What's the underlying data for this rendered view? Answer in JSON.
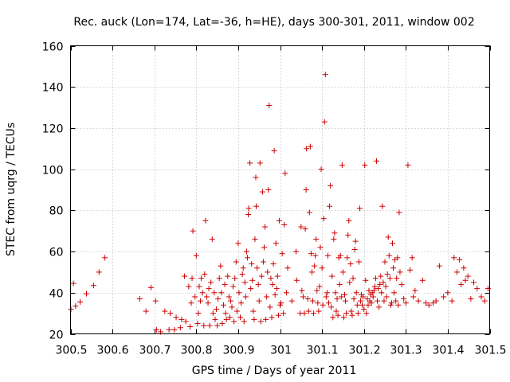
{
  "chart_data": {
    "type": "scatter",
    "title": "Rec. auck (Lon=174, Lat=-36, h=HE), days 300-301, 2011, window 002",
    "xlabel": "GPS time / Days of year 2011",
    "ylabel": "STEC from uqrg / TECUs",
    "xlim": [
      300.5,
      301.5
    ],
    "ylim": [
      20,
      160
    ],
    "xticks": [
      "300.5",
      "300.6",
      "300.7",
      "300.8",
      "300.9",
      "301",
      "301.1",
      "301.2",
      "301.3",
      "301.4",
      "301.5"
    ],
    "yticks": [
      "20",
      "40",
      "60",
      "80",
      "100",
      "120",
      "140",
      "160"
    ],
    "grid": true,
    "marker": "+",
    "color": "#cc0000",
    "series": [
      {
        "name": "STEC",
        "points": [
          [
            300.501,
            32
          ],
          [
            300.507,
            44.5
          ],
          [
            300.512,
            33.5
          ],
          [
            300.523,
            35.5
          ],
          [
            300.538,
            39.5
          ],
          [
            300.555,
            43.5
          ],
          [
            300.568,
            50
          ],
          [
            300.582,
            57
          ],
          [
            300.665,
            37
          ],
          [
            300.68,
            31
          ],
          [
            300.692,
            42.5
          ],
          [
            300.703,
            36
          ],
          [
            300.705,
            22
          ],
          [
            300.715,
            21
          ],
          [
            300.725,
            31
          ],
          [
            300.735,
            22
          ],
          [
            300.738,
            30
          ],
          [
            300.748,
            22
          ],
          [
            300.752,
            28
          ],
          [
            300.762,
            23
          ],
          [
            300.765,
            27
          ],
          [
            300.772,
            48
          ],
          [
            300.775,
            26
          ],
          [
            300.782,
            43
          ],
          [
            300.785,
            23.5
          ],
          [
            300.788,
            35
          ],
          [
            300.79,
            47
          ],
          [
            300.792,
            70
          ],
          [
            300.797,
            38
          ],
          [
            300.8,
            58
          ],
          [
            300.803,
            25
          ],
          [
            300.805,
            30
          ],
          [
            300.807,
            43
          ],
          [
            300.81,
            36
          ],
          [
            300.812,
            47
          ],
          [
            300.815,
            40
          ],
          [
            300.818,
            24
          ],
          [
            300.82,
            49
          ],
          [
            300.822,
            75
          ],
          [
            300.825,
            38
          ],
          [
            300.828,
            35
          ],
          [
            300.83,
            42
          ],
          [
            300.832,
            24
          ],
          [
            300.835,
            45
          ],
          [
            300.838,
            66
          ],
          [
            300.84,
            30
          ],
          [
            300.843,
            40
          ],
          [
            300.845,
            27
          ],
          [
            300.848,
            32
          ],
          [
            300.85,
            24
          ],
          [
            300.852,
            37
          ],
          [
            300.855,
            47
          ],
          [
            300.858,
            53
          ],
          [
            300.86,
            40
          ],
          [
            300.862,
            25
          ],
          [
            300.865,
            34
          ],
          [
            300.868,
            44
          ],
          [
            300.87,
            30
          ],
          [
            300.872,
            27
          ],
          [
            300.875,
            48
          ],
          [
            300.878,
            38
          ],
          [
            300.88,
            28
          ],
          [
            300.882,
            36
          ],
          [
            300.885,
            33
          ],
          [
            300.888,
            43
          ],
          [
            300.89,
            26
          ],
          [
            300.892,
            47
          ],
          [
            300.895,
            55
          ],
          [
            300.897,
            31
          ],
          [
            300.9,
            64
          ],
          [
            300.902,
            40
          ],
          [
            300.905,
            28
          ],
          [
            300.907,
            35
          ],
          [
            300.91,
            49
          ],
          [
            300.912,
            52
          ],
          [
            300.914,
            26
          ],
          [
            300.916,
            45
          ],
          [
            300.918,
            38
          ],
          [
            300.92,
            60
          ],
          [
            300.922,
            57
          ],
          [
            300.924,
            78
          ],
          [
            300.925,
            81
          ],
          [
            300.928,
            103
          ],
          [
            300.93,
            42
          ],
          [
            300.932,
            54
          ],
          [
            300.934,
            46
          ],
          [
            300.936,
            31
          ],
          [
            300.938,
            27
          ],
          [
            300.94,
            66
          ],
          [
            300.942,
            96
          ],
          [
            300.943,
            82
          ],
          [
            300.945,
            52
          ],
          [
            300.948,
            44
          ],
          [
            300.95,
            36
          ],
          [
            300.952,
            103
          ],
          [
            300.954,
            26
          ],
          [
            300.956,
            48
          ],
          [
            300.958,
            89
          ],
          [
            300.96,
            55
          ],
          [
            300.962,
            62
          ],
          [
            300.964,
            72
          ],
          [
            300.966,
            27
          ],
          [
            300.968,
            38
          ],
          [
            300.97,
            50
          ],
          [
            300.972,
            90
          ],
          [
            300.974,
            131
          ],
          [
            300.976,
            33
          ],
          [
            300.978,
            47
          ],
          [
            300.98,
            28
          ],
          [
            300.982,
            44
          ],
          [
            300.984,
            54
          ],
          [
            300.986,
            109
          ],
          [
            300.988,
            39
          ],
          [
            300.99,
            64
          ],
          [
            300.992,
            42
          ],
          [
            300.994,
            48
          ],
          [
            300.996,
            29
          ],
          [
            300.998,
            75
          ],
          [
            301.0,
            34
          ],
          [
            301.002,
            35
          ],
          [
            301.005,
            59
          ],
          [
            301.008,
            30
          ],
          [
            301.01,
            73
          ],
          [
            301.012,
            98
          ],
          [
            301.015,
            40
          ],
          [
            301.018,
            52
          ],
          [
            301.028,
            36
          ],
          [
            301.038,
            60
          ],
          [
            301.04,
            46
          ],
          [
            301.048,
            30
          ],
          [
            301.05,
            72
          ],
          [
            301.052,
            41
          ],
          [
            301.055,
            38
          ],
          [
            301.058,
            30
          ],
          [
            301.06,
            71
          ],
          [
            301.062,
            90
          ],
          [
            301.063,
            110
          ],
          [
            301.066,
            37
          ],
          [
            301.068,
            31
          ],
          [
            301.07,
            79
          ],
          [
            301.072,
            111
          ],
          [
            301.074,
            59
          ],
          [
            301.076,
            50
          ],
          [
            301.078,
            36
          ],
          [
            301.08,
            30
          ],
          [
            301.082,
            53
          ],
          [
            301.084,
            58
          ],
          [
            301.086,
            66
          ],
          [
            301.088,
            41
          ],
          [
            301.09,
            35
          ],
          [
            301.092,
            31
          ],
          [
            301.094,
            43
          ],
          [
            301.096,
            62
          ],
          [
            301.098,
            100
          ],
          [
            301.1,
            52
          ],
          [
            301.102,
            34
          ],
          [
            301.104,
            76
          ],
          [
            301.106,
            123
          ],
          [
            301.108,
            146
          ],
          [
            301.11,
            38
          ],
          [
            301.112,
            40
          ],
          [
            301.114,
            58
          ],
          [
            301.116,
            35
          ],
          [
            301.118,
            82
          ],
          [
            301.12,
            92
          ],
          [
            301.122,
            33
          ],
          [
            301.124,
            48
          ],
          [
            301.126,
            28
          ],
          [
            301.128,
            66
          ],
          [
            301.13,
            69
          ],
          [
            301.132,
            40
          ],
          [
            301.134,
            31
          ],
          [
            301.136,
            37
          ],
          [
            301.138,
            29
          ],
          [
            301.14,
            57
          ],
          [
            301.142,
            44
          ],
          [
            301.144,
            58
          ],
          [
            301.146,
            38
          ],
          [
            301.148,
            102
          ],
          [
            301.15,
            50
          ],
          [
            301.152,
            28
          ],
          [
            301.154,
            39
          ],
          [
            301.156,
            36
          ],
          [
            301.158,
            30
          ],
          [
            301.16,
            57
          ],
          [
            301.162,
            68
          ],
          [
            301.164,
            75
          ],
          [
            301.166,
            45
          ],
          [
            301.168,
            54
          ],
          [
            301.17,
            31
          ],
          [
            301.172,
            29
          ],
          [
            301.174,
            47
          ],
          [
            301.176,
            37
          ],
          [
            301.178,
            61
          ],
          [
            301.18,
            65
          ],
          [
            301.182,
            40
          ],
          [
            301.184,
            34
          ],
          [
            301.186,
            30
          ],
          [
            301.188,
            55
          ],
          [
            301.19,
            81
          ],
          [
            301.192,
            36
          ],
          [
            301.194,
            39
          ],
          [
            301.196,
            34
          ],
          [
            301.198,
            38
          ],
          [
            301.2,
            32
          ],
          [
            301.202,
            102
          ],
          [
            301.204,
            46
          ],
          [
            301.206,
            30
          ],
          [
            301.208,
            37
          ],
          [
            301.21,
            34
          ],
          [
            301.212,
            41
          ],
          [
            301.214,
            36
          ],
          [
            301.216,
            39
          ],
          [
            301.218,
            35
          ],
          [
            301.22,
            40
          ],
          [
            301.222,
            38
          ],
          [
            301.224,
            41
          ],
          [
            301.226,
            43
          ],
          [
            301.228,
            47
          ],
          [
            301.23,
            104
          ],
          [
            301.232,
            36
          ],
          [
            301.234,
            42
          ],
          [
            301.236,
            33
          ],
          [
            301.238,
            44
          ],
          [
            301.24,
            48
          ],
          [
            301.242,
            40
          ],
          [
            301.244,
            82
          ],
          [
            301.246,
            45
          ],
          [
            301.248,
            36
          ],
          [
            301.25,
            55
          ],
          [
            301.252,
            43
          ],
          [
            301.254,
            38
          ],
          [
            301.256,
            49
          ],
          [
            301.258,
            67
          ],
          [
            301.26,
            58
          ],
          [
            301.262,
            47
          ],
          [
            301.264,
            34
          ],
          [
            301.266,
            35
          ],
          [
            301.268,
            64
          ],
          [
            301.27,
            52
          ],
          [
            301.272,
            40
          ],
          [
            301.274,
            56
          ],
          [
            301.276,
            36
          ],
          [
            301.278,
            47
          ],
          [
            301.28,
            57
          ],
          [
            301.282,
            34
          ],
          [
            301.284,
            79
          ],
          [
            301.286,
            50
          ],
          [
            301.29,
            44
          ],
          [
            301.295,
            37
          ],
          [
            301.3,
            35
          ],
          [
            301.305,
            102
          ],
          [
            301.31,
            51
          ],
          [
            301.315,
            57
          ],
          [
            301.318,
            38
          ],
          [
            301.322,
            41
          ],
          [
            301.33,
            36
          ],
          [
            301.34,
            46
          ],
          [
            301.348,
            35
          ],
          [
            301.355,
            34
          ],
          [
            301.365,
            35
          ],
          [
            301.372,
            36
          ],
          [
            301.38,
            53
          ],
          [
            301.39,
            38
          ],
          [
            301.4,
            40
          ],
          [
            301.41,
            36
          ],
          [
            301.415,
            57
          ],
          [
            301.422,
            50
          ],
          [
            301.428,
            56
          ],
          [
            301.432,
            44
          ],
          [
            301.438,
            52
          ],
          [
            301.442,
            46
          ],
          [
            301.448,
            48
          ],
          [
            301.455,
            37
          ],
          [
            301.462,
            45
          ],
          [
            301.47,
            42
          ],
          [
            301.48,
            38
          ],
          [
            301.488,
            36
          ],
          [
            301.496,
            42
          ]
        ]
      }
    ]
  }
}
